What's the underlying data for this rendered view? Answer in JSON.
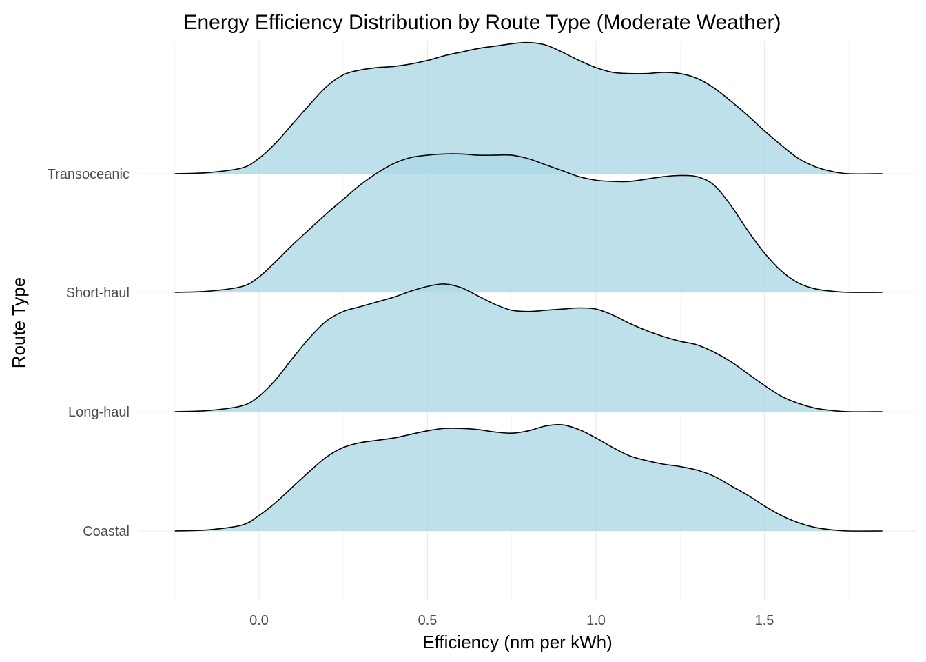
{
  "chart_data": {
    "type": "ridgeline",
    "title": "Energy Efficiency Distribution by Route Type (Moderate Weather)",
    "xlabel": "Efficiency (nm per kWh)",
    "ylabel": "Route Type",
    "xlim": [
      -0.25,
      1.85
    ],
    "x_ticks": [
      0.0,
      0.5,
      1.0,
      1.5
    ],
    "x_tick_labels": [
      "0.0",
      "0.5",
      "1.0",
      "1.5"
    ],
    "categories": [
      "Coastal",
      "Long-haul",
      "Short-haul",
      "Transoceanic"
    ],
    "grid": "on",
    "legend": "none",
    "fill_color": "#ADD8E6",
    "line_color": "#000000",
    "series": [
      {
        "name": "Coastal",
        "density": [
          [
            -0.25,
            0.0
          ],
          [
            -0.15,
            0.01
          ],
          [
            -0.05,
            0.05
          ],
          [
            0.0,
            0.13
          ],
          [
            0.05,
            0.24
          ],
          [
            0.1,
            0.37
          ],
          [
            0.15,
            0.5
          ],
          [
            0.2,
            0.62
          ],
          [
            0.25,
            0.7
          ],
          [
            0.3,
            0.74
          ],
          [
            0.35,
            0.76
          ],
          [
            0.4,
            0.78
          ],
          [
            0.45,
            0.81
          ],
          [
            0.5,
            0.84
          ],
          [
            0.55,
            0.86
          ],
          [
            0.6,
            0.86
          ],
          [
            0.65,
            0.85
          ],
          [
            0.7,
            0.83
          ],
          [
            0.75,
            0.82
          ],
          [
            0.8,
            0.84
          ],
          [
            0.85,
            0.88
          ],
          [
            0.9,
            0.89
          ],
          [
            0.95,
            0.85
          ],
          [
            1.0,
            0.78
          ],
          [
            1.05,
            0.7
          ],
          [
            1.1,
            0.63
          ],
          [
            1.15,
            0.59
          ],
          [
            1.2,
            0.56
          ],
          [
            1.25,
            0.54
          ],
          [
            1.3,
            0.51
          ],
          [
            1.35,
            0.46
          ],
          [
            1.4,
            0.38
          ],
          [
            1.45,
            0.3
          ],
          [
            1.5,
            0.21
          ],
          [
            1.55,
            0.13
          ],
          [
            1.6,
            0.07
          ],
          [
            1.65,
            0.03
          ],
          [
            1.7,
            0.01
          ],
          [
            1.75,
            0.0
          ],
          [
            1.85,
            0.0
          ]
        ]
      },
      {
        "name": "Long-haul",
        "density": [
          [
            -0.25,
            0.0
          ],
          [
            -0.15,
            0.01
          ],
          [
            -0.05,
            0.05
          ],
          [
            0.0,
            0.13
          ],
          [
            0.05,
            0.27
          ],
          [
            0.1,
            0.45
          ],
          [
            0.15,
            0.62
          ],
          [
            0.2,
            0.76
          ],
          [
            0.25,
            0.84
          ],
          [
            0.3,
            0.88
          ],
          [
            0.35,
            0.92
          ],
          [
            0.4,
            0.96
          ],
          [
            0.45,
            1.01
          ],
          [
            0.5,
            1.05
          ],
          [
            0.55,
            1.07
          ],
          [
            0.6,
            1.04
          ],
          [
            0.65,
            0.97
          ],
          [
            0.7,
            0.9
          ],
          [
            0.75,
            0.85
          ],
          [
            0.8,
            0.84
          ],
          [
            0.85,
            0.85
          ],
          [
            0.9,
            0.86
          ],
          [
            0.95,
            0.87
          ],
          [
            1.0,
            0.86
          ],
          [
            1.05,
            0.81
          ],
          [
            1.1,
            0.74
          ],
          [
            1.15,
            0.68
          ],
          [
            1.2,
            0.63
          ],
          [
            1.25,
            0.59
          ],
          [
            1.3,
            0.56
          ],
          [
            1.35,
            0.5
          ],
          [
            1.4,
            0.42
          ],
          [
            1.45,
            0.32
          ],
          [
            1.5,
            0.22
          ],
          [
            1.55,
            0.13
          ],
          [
            1.6,
            0.07
          ],
          [
            1.65,
            0.03
          ],
          [
            1.7,
            0.01
          ],
          [
            1.75,
            0.0
          ],
          [
            1.85,
            0.0
          ]
        ]
      },
      {
        "name": "Short-haul",
        "density": [
          [
            -0.25,
            0.0
          ],
          [
            -0.15,
            0.01
          ],
          [
            -0.05,
            0.05
          ],
          [
            0.0,
            0.13
          ],
          [
            0.05,
            0.26
          ],
          [
            0.1,
            0.4
          ],
          [
            0.15,
            0.53
          ],
          [
            0.2,
            0.66
          ],
          [
            0.25,
            0.78
          ],
          [
            0.3,
            0.9
          ],
          [
            0.35,
            1.0
          ],
          [
            0.4,
            1.08
          ],
          [
            0.45,
            1.13
          ],
          [
            0.5,
            1.15
          ],
          [
            0.55,
            1.16
          ],
          [
            0.6,
            1.16
          ],
          [
            0.65,
            1.15
          ],
          [
            0.7,
            1.15
          ],
          [
            0.75,
            1.15
          ],
          [
            0.8,
            1.12
          ],
          [
            0.85,
            1.07
          ],
          [
            0.9,
            1.02
          ],
          [
            0.95,
            0.97
          ],
          [
            1.0,
            0.94
          ],
          [
            1.05,
            0.93
          ],
          [
            1.1,
            0.93
          ],
          [
            1.15,
            0.95
          ],
          [
            1.2,
            0.97
          ],
          [
            1.25,
            0.98
          ],
          [
            1.3,
            0.97
          ],
          [
            1.35,
            0.9
          ],
          [
            1.4,
            0.73
          ],
          [
            1.45,
            0.52
          ],
          [
            1.5,
            0.33
          ],
          [
            1.55,
            0.18
          ],
          [
            1.6,
            0.08
          ],
          [
            1.65,
            0.03
          ],
          [
            1.7,
            0.01
          ],
          [
            1.75,
            0.0
          ],
          [
            1.85,
            0.0
          ]
        ]
      },
      {
        "name": "Transoceanic",
        "density": [
          [
            -0.25,
            0.0
          ],
          [
            -0.15,
            0.01
          ],
          [
            -0.05,
            0.05
          ],
          [
            0.0,
            0.13
          ],
          [
            0.05,
            0.26
          ],
          [
            0.1,
            0.42
          ],
          [
            0.15,
            0.58
          ],
          [
            0.2,
            0.73
          ],
          [
            0.25,
            0.83
          ],
          [
            0.3,
            0.87
          ],
          [
            0.35,
            0.89
          ],
          [
            0.4,
            0.9
          ],
          [
            0.45,
            0.92
          ],
          [
            0.5,
            0.95
          ],
          [
            0.55,
            0.99
          ],
          [
            0.6,
            1.02
          ],
          [
            0.65,
            1.05
          ],
          [
            0.7,
            1.07
          ],
          [
            0.75,
            1.09
          ],
          [
            0.8,
            1.1
          ],
          [
            0.85,
            1.08
          ],
          [
            0.9,
            1.02
          ],
          [
            0.95,
            0.95
          ],
          [
            1.0,
            0.89
          ],
          [
            1.05,
            0.85
          ],
          [
            1.1,
            0.84
          ],
          [
            1.15,
            0.84
          ],
          [
            1.2,
            0.85
          ],
          [
            1.25,
            0.84
          ],
          [
            1.3,
            0.8
          ],
          [
            1.35,
            0.72
          ],
          [
            1.4,
            0.61
          ],
          [
            1.45,
            0.49
          ],
          [
            1.5,
            0.36
          ],
          [
            1.55,
            0.24
          ],
          [
            1.6,
            0.13
          ],
          [
            1.65,
            0.06
          ],
          [
            1.7,
            0.02
          ],
          [
            1.75,
            0.0
          ],
          [
            1.85,
            0.0
          ]
        ]
      }
    ]
  }
}
